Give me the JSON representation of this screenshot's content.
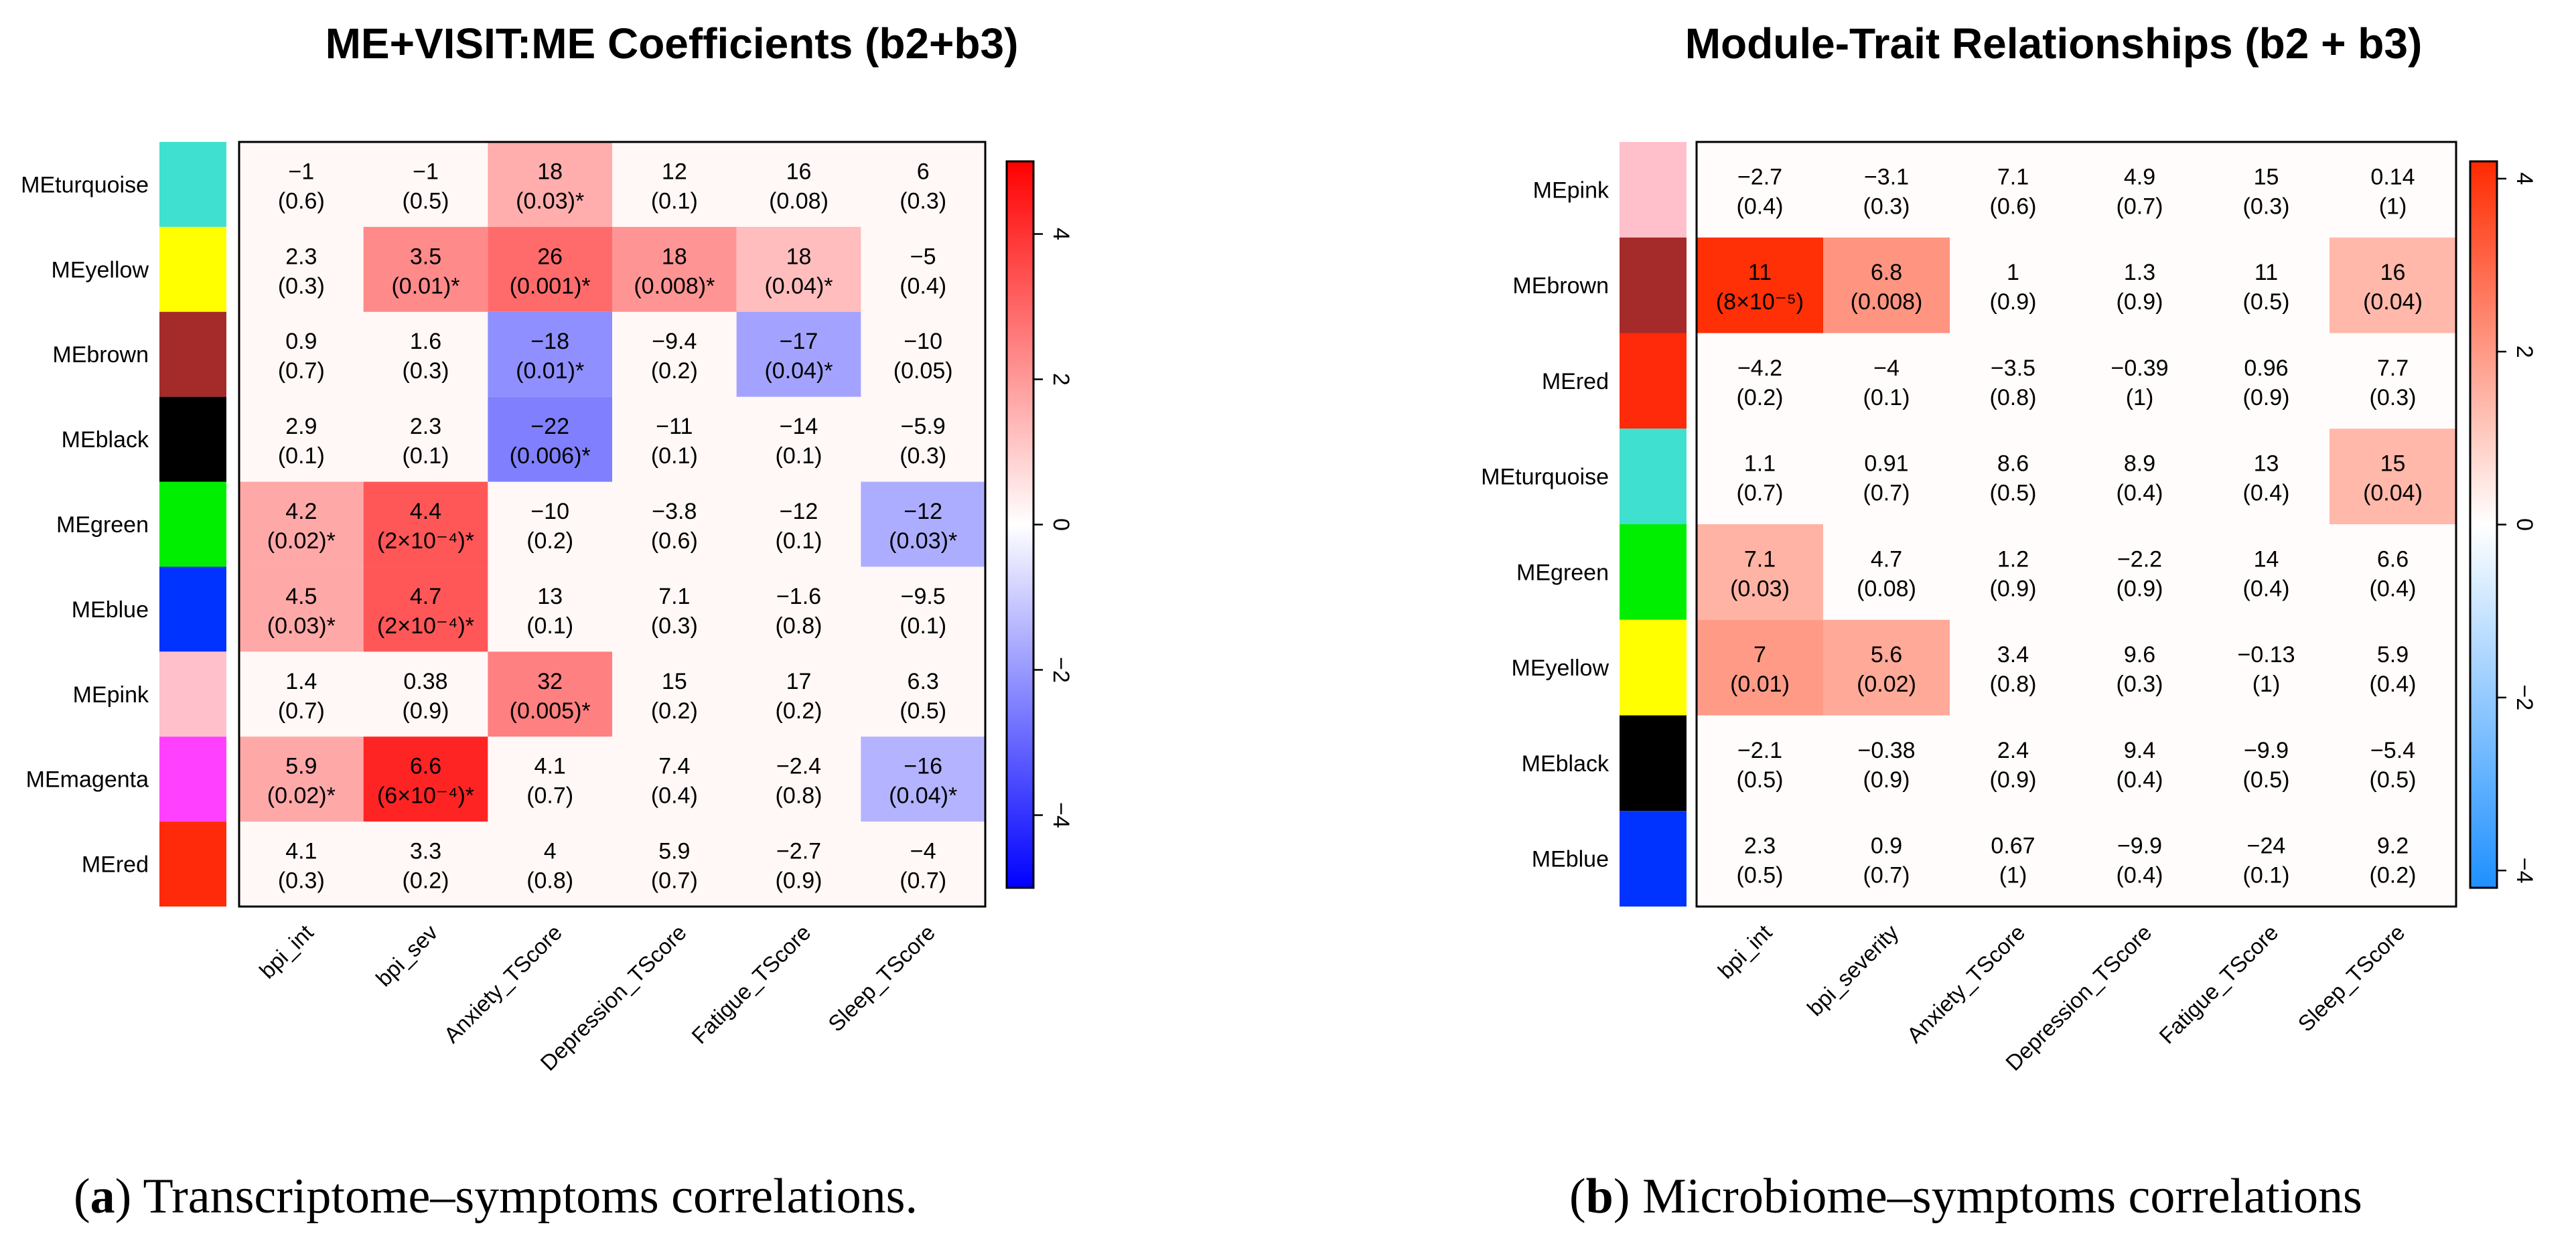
{
  "chart_data": [
    {
      "type": "heatmap",
      "title": "ME+VISIT:ME Coefficients (b2+b3)",
      "rows": [
        "MEturquoise",
        "MEyellow",
        "MEbrown",
        "MEblack",
        "MEgreen",
        "MEblue",
        "MEpink",
        "MEmagenta",
        "MEred"
      ],
      "row_colors": [
        "#40E0D0",
        "#FFFF00",
        "#A52A2A",
        "#000000",
        "#00EE00",
        "#0033FF",
        "#FFC0CB",
        "#FF40FF",
        "#FF2A0A"
      ],
      "columns": [
        "bpi_int",
        "bpi_sev",
        "Anxiety_TScore",
        "Depression_TScore",
        "Fatigue_TScore",
        "Sleep_TScore"
      ],
      "values": [
        [
          "−1",
          "−1",
          "18",
          "12",
          "16",
          "6"
        ],
        [
          "2.3",
          "3.5",
          "26",
          "18",
          "18",
          "−5"
        ],
        [
          "0.9",
          "1.6",
          "−18",
          "−9.4",
          "−17",
          "−10"
        ],
        [
          "2.9",
          "2.3",
          "−22",
          "−11",
          "−14",
          "−5.9"
        ],
        [
          "4.2",
          "4.4",
          "−10",
          "−3.8",
          "−12",
          "−12"
        ],
        [
          "4.5",
          "4.7",
          "13",
          "7.1",
          "−1.6",
          "−9.5"
        ],
        [
          "1.4",
          "0.38",
          "32",
          "15",
          "17",
          "6.3"
        ],
        [
          "5.9",
          "6.6",
          "4.1",
          "7.4",
          "−2.4",
          "−16"
        ],
        [
          "4.1",
          "3.3",
          "4",
          "5.9",
          "−2.7",
          "−4"
        ]
      ],
      "pvalues": [
        [
          "(0.6)",
          "(0.5)",
          "(0.03)*",
          "(0.1)",
          "(0.08)",
          "(0.3)"
        ],
        [
          "(0.3)",
          "(0.01)*",
          "(0.001)*",
          "(0.008)*",
          "(0.04)*",
          "(0.4)"
        ],
        [
          "(0.7)",
          "(0.3)",
          "(0.01)*",
          "(0.2)",
          "(0.04)*",
          "(0.05)"
        ],
        [
          "(0.1)",
          "(0.1)",
          "(0.006)*",
          "(0.1)",
          "(0.1)",
          "(0.3)"
        ],
        [
          "(0.02)*",
          "(2×10⁻⁴)*",
          "(0.2)",
          "(0.6)",
          "(0.1)",
          "(0.03)*"
        ],
        [
          "(0.03)*",
          "(2×10⁻⁴)*",
          "(0.1)",
          "(0.3)",
          "(0.8)",
          "(0.1)"
        ],
        [
          "(0.7)",
          "(0.9)",
          "(0.005)*",
          "(0.2)",
          "(0.2)",
          "(0.5)"
        ],
        [
          "(0.02)*",
          "(6×10⁻⁴)*",
          "(0.7)",
          "(0.4)",
          "(0.8)",
          "(0.04)*"
        ],
        [
          "(0.3)",
          "(0.2)",
          "(0.8)",
          "(0.7)",
          "(0.9)",
          "(0.7)"
        ]
      ],
      "fill_level": [
        [
          0,
          0,
          1.6,
          0,
          0,
          0
        ],
        [
          0,
          2.3,
          2.9,
          2.1,
          1.3,
          0
        ],
        [
          0,
          0,
          -2.2,
          0,
          -1.8,
          0
        ],
        [
          0,
          0,
          -2.5,
          0,
          0,
          0
        ],
        [
          1.7,
          3.3,
          0,
          0,
          0,
          -1.6
        ],
        [
          1.7,
          3.3,
          0,
          0,
          0,
          0
        ],
        [
          0,
          0,
          2.5,
          0,
          0,
          0
        ],
        [
          1.7,
          4.3,
          0,
          0,
          0,
          -1.5
        ],
        [
          0,
          0,
          0,
          0,
          0,
          0
        ]
      ],
      "colorbar": {
        "min": -5,
        "max": 5,
        "ticks": [
          "−4",
          "−2",
          "0",
          "2",
          "4"
        ],
        "tick_values": [
          -4,
          -2,
          0,
          2,
          4
        ],
        "low_color": "#0000FF",
        "mid_color": "#FFFFFF",
        "high_color": "#FF0000"
      }
    },
    {
      "type": "heatmap",
      "title": "Module-Trait Relationships (b2 + b3)",
      "rows": [
        "MEpink",
        "MEbrown",
        "MEred",
        "MEturquoise",
        "MEgreen",
        "MEyellow",
        "MEblack",
        "MEblue"
      ],
      "row_colors": [
        "#FFC0CB",
        "#A52A2A",
        "#FF2A0A",
        "#40E0D0",
        "#00EE00",
        "#FFFF00",
        "#000000",
        "#0033FF"
      ],
      "columns": [
        "bpi_int",
        "bpi_severity",
        "Anxiety_TScore",
        "Depression_TScore",
        "Fatigue_TScore",
        "Sleep_TScore"
      ],
      "values": [
        [
          "−2.7",
          "−3.1",
          "7.1",
          "4.9",
          "15",
          "0.14"
        ],
        [
          "11",
          "6.8",
          "1",
          "1.3",
          "11",
          "16"
        ],
        [
          "−4.2",
          "−4",
          "−3.5",
          "−0.39",
          "0.96",
          "7.7"
        ],
        [
          "1.1",
          "0.91",
          "8.6",
          "8.9",
          "13",
          "15"
        ],
        [
          "7.1",
          "4.7",
          "1.2",
          "−2.2",
          "14",
          "6.6"
        ],
        [
          "7",
          "5.6",
          "3.4",
          "9.6",
          "−0.13",
          "5.9"
        ],
        [
          "−2.1",
          "−0.38",
          "2.4",
          "9.4",
          "−9.9",
          "−5.4"
        ],
        [
          "2.3",
          "0.9",
          "0.67",
          "−9.9",
          "−24",
          "9.2"
        ]
      ],
      "pvalues": [
        [
          "(0.4)",
          "(0.3)",
          "(0.6)",
          "(0.7)",
          "(0.3)",
          "(1)"
        ],
        [
          "(8×10⁻⁵)",
          "(0.008)",
          "(0.9)",
          "(0.9)",
          "(0.5)",
          "(0.04)"
        ],
        [
          "(0.2)",
          "(0.1)",
          "(0.8)",
          "(1)",
          "(0.9)",
          "(0.3)"
        ],
        [
          "(0.7)",
          "(0.7)",
          "(0.5)",
          "(0.4)",
          "(0.4)",
          "(0.04)"
        ],
        [
          "(0.03)",
          "(0.08)",
          "(0.9)",
          "(0.9)",
          "(0.4)",
          "(0.4)"
        ],
        [
          "(0.01)",
          "(0.02)",
          "(0.8)",
          "(0.3)",
          "(1)",
          "(0.4)"
        ],
        [
          "(0.5)",
          "(0.9)",
          "(0.9)",
          "(0.4)",
          "(0.5)",
          "(0.5)"
        ],
        [
          "(0.5)",
          "(0.7)",
          "(1)",
          "(0.4)",
          "(0.1)",
          "(0.2)"
        ]
      ],
      "fill_level": [
        [
          0,
          0,
          0,
          0,
          0,
          0
        ],
        [
          4.1,
          2.1,
          0,
          0,
          0,
          1.4
        ],
        [
          0,
          0,
          0,
          0,
          0,
          0
        ],
        [
          0,
          0,
          0,
          0,
          0,
          1.4
        ],
        [
          1.5,
          0,
          0,
          0,
          0,
          0
        ],
        [
          2.0,
          1.7,
          0,
          0,
          0,
          0
        ],
        [
          0,
          0,
          0,
          0,
          0,
          0
        ],
        [
          0,
          0,
          0,
          0,
          0,
          0
        ]
      ],
      "colorbar": {
        "min": -4.2,
        "max": 4.2,
        "ticks": [
          "−4",
          "−2",
          "0",
          "2",
          "4"
        ],
        "tick_values": [
          -4,
          -2,
          0,
          2,
          4
        ],
        "low_color": "#1E90FF",
        "mid_color": "#FFFFFF",
        "high_color": "#FF2A00"
      }
    }
  ],
  "captions": [
    {
      "letter": "a",
      "text": " Transcriptome–symptoms correlations."
    },
    {
      "letter": "b",
      "text": " Microbiome–symptoms correlations"
    }
  ]
}
